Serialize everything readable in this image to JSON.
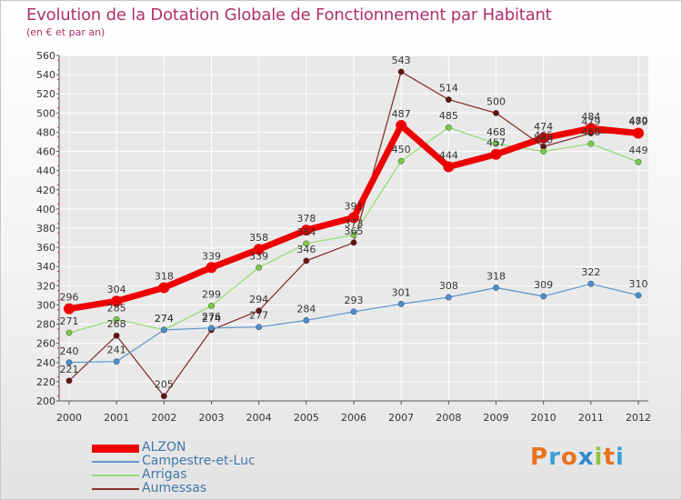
{
  "header": {
    "title": "Evolution de la Dotation Globale de Fonctionnement par Habitant",
    "subtitle": "(en € et par an)"
  },
  "logo": {
    "text": "Proxiti",
    "colors": [
      "#e8731c",
      "#3aa0d8",
      "#e8731c",
      "#2e8ad0",
      "#8bc53f",
      "#e8731c",
      "#3aa0d8"
    ]
  },
  "colors": {
    "title": "#b0306a",
    "legend_text": "#4477aa",
    "axis": "#555555",
    "grid": "#ffffff"
  },
  "chart_data": {
    "type": "line",
    "title": "Evolution de la Dotation Globale de Fonctionnement par Habitant",
    "subtitle": "(en € et par an)",
    "xlabel": "",
    "ylabel": "",
    "ylim": [
      200,
      560
    ],
    "ytick_step": 20,
    "categories": [
      "2000",
      "2001",
      "2002",
      "2003",
      "2004",
      "2005",
      "2006",
      "2007",
      "2008",
      "2009",
      "2010",
      "2011",
      "2012"
    ],
    "legend_position": "bottom-left",
    "series": [
      {
        "name": "ALZON",
        "color": "#ee0000",
        "marker_fill": "#ee0000",
        "values": [
          296,
          304,
          318,
          339,
          358,
          378,
          391,
          487,
          444,
          457,
          474,
          484,
          479
        ],
        "labels": [
          "296",
          "304",
          "318",
          "339",
          "358",
          "378",
          "391",
          "487",
          "444",
          "457",
          "474",
          "484",
          "479"
        ]
      },
      {
        "name": "Campestre-et-Luc",
        "color": "#6699cc",
        "marker_fill": "#4a8fd0",
        "values": [
          240,
          241,
          274,
          276,
          277,
          284,
          293,
          301,
          308,
          318,
          309,
          322,
          310
        ],
        "labels": [
          "240",
          "241",
          "274",
          "276",
          "277",
          "284",
          "293",
          "301",
          "308",
          "318",
          "309",
          "322",
          "310"
        ]
      },
      {
        "name": "Arrigas",
        "color": "#99dd77",
        "marker_fill": "#77cc44",
        "values": [
          271,
          285,
          274,
          299,
          339,
          364,
          373,
          450,
          485,
          468,
          460,
          468,
          449
        ],
        "labels": [
          "271",
          "285",
          "274",
          "299",
          "339",
          "364",
          "373",
          "450",
          "485",
          "468",
          "460",
          "468",
          "449"
        ]
      },
      {
        "name": "Aumessas",
        "color": "#883333",
        "marker_fill": "#661111",
        "values": [
          221,
          268,
          205,
          274,
          294,
          346,
          365,
          543,
          514,
          500,
          465,
          479,
          480
        ],
        "labels": [
          "221",
          "268",
          "205",
          "274",
          "294",
          "346",
          "365",
          "543",
          "514",
          "500",
          "465",
          "479",
          "480"
        ]
      }
    ]
  }
}
